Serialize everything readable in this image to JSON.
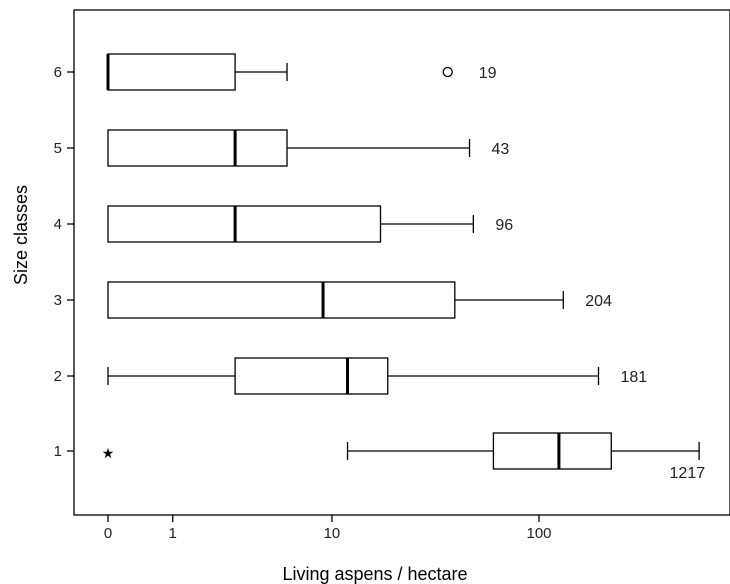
{
  "chart_data": {
    "type": "boxplot",
    "orientation": "horizontal",
    "xlabel": "Living aspens / hectare",
    "ylabel": "Size classes",
    "x_scale": "log(x+1)",
    "x_ticks": [
      0,
      1,
      10,
      100
    ],
    "categories": [
      "1",
      "2",
      "3",
      "4",
      "5",
      "6"
    ],
    "boxes": [
      {
        "category": "1",
        "whisker_low": 12,
        "q1": 61,
        "median": 124,
        "q3": 218,
        "whisker_high": 560,
        "outliers": [
          {
            "value": 0,
            "marker": "star"
          }
        ],
        "n": "1217"
      },
      {
        "category": "2",
        "whisker_low": 0,
        "q1": 2.9,
        "median": 12,
        "q3": 19,
        "whisker_high": 190,
        "outliers": [],
        "n": "181"
      },
      {
        "category": "3",
        "whisker_low": 0,
        "q1": 0,
        "median": 9,
        "q3": 40,
        "whisker_high": 130,
        "outliers": [],
        "n": "204"
      },
      {
        "category": "4",
        "whisker_low": 0,
        "q1": 0,
        "median": 2.9,
        "q3": 17.5,
        "whisker_high": 49,
        "outliers": [],
        "n": "96"
      },
      {
        "category": "5",
        "whisker_low": 0,
        "q1": 0,
        "median": 2.9,
        "q3": 5.8,
        "whisker_high": 47,
        "outliers": [],
        "n": "43"
      },
      {
        "category": "6",
        "whisker_low": 0,
        "q1": 0,
        "median": 0,
        "q3": 2.9,
        "whisker_high": 5.8,
        "outliers": [
          {
            "value": 37,
            "marker": "circle"
          }
        ],
        "n": "19"
      }
    ]
  }
}
